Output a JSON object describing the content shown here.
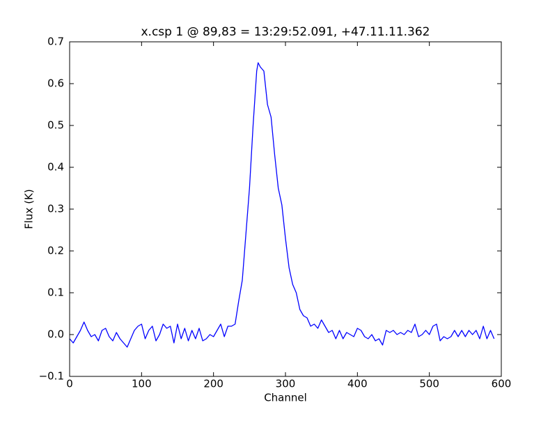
{
  "chart_data": {
    "type": "line",
    "title": "x.csp 1 @ 89,83 = 13:29:52.091, +47.11.11.362",
    "x_label": "Channel",
    "y_label": "Flux (K)",
    "x": [
      0,
      5,
      10,
      15,
      20,
      25,
      30,
      35,
      40,
      45,
      50,
      55,
      60,
      65,
      70,
      75,
      80,
      85,
      90,
      95,
      100,
      105,
      110,
      115,
      120,
      125,
      130,
      135,
      140,
      145,
      150,
      155,
      160,
      165,
      170,
      175,
      180,
      185,
      190,
      195,
      200,
      205,
      210,
      215,
      220,
      225,
      230,
      235,
      240,
      245,
      250,
      255,
      260,
      262,
      265,
      270,
      275,
      280,
      285,
      290,
      295,
      300,
      305,
      310,
      315,
      320,
      325,
      330,
      335,
      340,
      345,
      350,
      355,
      360,
      365,
      370,
      375,
      380,
      385,
      390,
      395,
      400,
      405,
      410,
      415,
      420,
      425,
      430,
      435,
      440,
      445,
      450,
      455,
      460,
      465,
      470,
      475,
      480,
      485,
      490,
      495,
      500,
      505,
      510,
      515,
      520,
      525,
      530,
      535,
      540,
      545,
      550,
      555,
      560,
      565,
      570,
      575,
      580,
      585,
      590
    ],
    "series": [
      {
        "name": "flux",
        "color": "#0000ff",
        "values": [
          -0.01,
          -0.02,
          -0.005,
          0.01,
          0.03,
          0.01,
          -0.005,
          0.0,
          -0.015,
          0.01,
          0.015,
          -0.005,
          -0.015,
          0.005,
          -0.01,
          -0.02,
          -0.03,
          -0.01,
          0.01,
          0.02,
          0.025,
          -0.01,
          0.01,
          0.02,
          -0.015,
          0.0,
          0.025,
          0.015,
          0.02,
          -0.02,
          0.025,
          -0.01,
          0.015,
          -0.015,
          0.01,
          -0.01,
          0.015,
          -0.015,
          -0.01,
          0.0,
          -0.005,
          0.01,
          0.025,
          -0.005,
          0.02,
          0.02,
          0.025,
          0.08,
          0.13,
          0.24,
          0.35,
          0.5,
          0.63,
          0.65,
          0.64,
          0.63,
          0.55,
          0.52,
          0.43,
          0.35,
          0.31,
          0.23,
          0.16,
          0.12,
          0.1,
          0.06,
          0.045,
          0.04,
          0.02,
          0.025,
          0.015,
          0.035,
          0.02,
          0.005,
          0.01,
          -0.01,
          0.01,
          -0.01,
          0.005,
          0.0,
          -0.005,
          0.015,
          0.01,
          -0.005,
          -0.01,
          0.0,
          -0.015,
          -0.01,
          -0.025,
          0.01,
          0.005,
          0.01,
          0.0,
          0.005,
          0.0,
          0.01,
          0.005,
          0.025,
          -0.005,
          0.0,
          0.01,
          0.0,
          0.02,
          0.025,
          -0.015,
          -0.005,
          -0.01,
          -0.005,
          0.01,
          -0.005,
          0.01,
          -0.005,
          0.01,
          0.0,
          0.01,
          -0.01,
          0.02,
          -0.01,
          0.01,
          -0.01
        ]
      }
    ],
    "xlim": [
      0,
      600
    ],
    "xticks": [
      0,
      100,
      200,
      300,
      400,
      500,
      600
    ],
    "ylim": [
      -0.1,
      0.7
    ],
    "yticks": [
      {
        "value": -0.1,
        "label": "−0.1"
      },
      {
        "value": 0,
        "label": "0.0"
      },
      0.1,
      0.2,
      0.3,
      0.4,
      0.5,
      0.6,
      0.7
    ]
  }
}
